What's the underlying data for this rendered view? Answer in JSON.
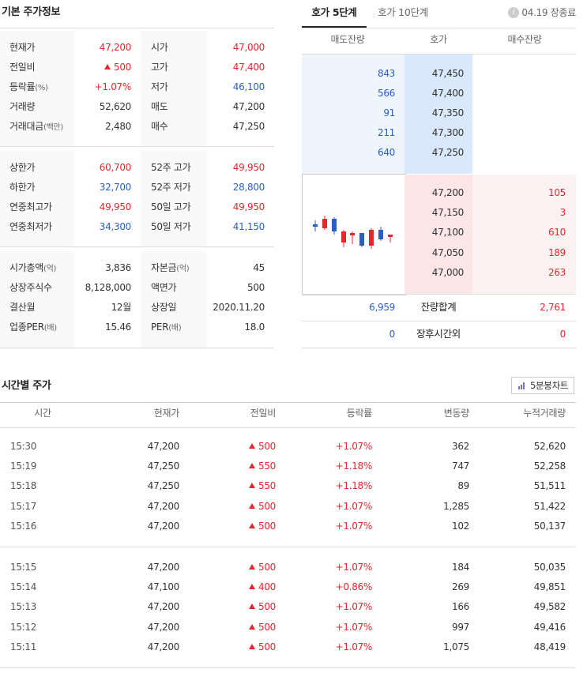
{
  "basic": {
    "title": "기본 주가정보",
    "groups": [
      [
        {
          "label": "현재가",
          "value": "47,200",
          "value_color": "#e8262d",
          "label2": "시가",
          "value2": "47,000",
          "value2_color": "#e8262d"
        },
        {
          "label": "전일비",
          "value": "500",
          "value_color": "#e8262d",
          "arrow": "up",
          "label2": "고가",
          "value2": "47,400",
          "value2_color": "#e8262d"
        },
        {
          "label": "등락률",
          "unit": "(%)",
          "value": "+1.07%",
          "value_color": "#e8262d",
          "label2": "저가",
          "value2": "46,100",
          "value2_color": "#2a5fc4"
        },
        {
          "label": "거래량",
          "value": "52,620",
          "label2": "매도",
          "value2": "47,200"
        },
        {
          "label": "거래대금",
          "unit": "(백만)",
          "value": "2,480",
          "label2": "매수",
          "value2": "47,250"
        }
      ],
      [
        {
          "label": "상한가",
          "value": "60,700",
          "value_color": "#e8262d",
          "label2": "52주 고가",
          "value2": "49,950",
          "value2_color": "#e8262d"
        },
        {
          "label": "하한가",
          "value": "32,700",
          "value_color": "#2a5fc4",
          "label2": "52주 저가",
          "value2": "28,800",
          "value2_color": "#2a5fc4"
        },
        {
          "label": "연중최고가",
          "value": "49,950",
          "value_color": "#e8262d",
          "label2": "50일 고가",
          "value2": "49,950",
          "value2_color": "#e8262d"
        },
        {
          "label": "연중최저가",
          "value": "34,300",
          "value_color": "#2a5fc4",
          "label2": "50일 저가",
          "value2": "41,150",
          "value2_color": "#2a5fc4"
        }
      ],
      [
        {
          "label": "시가총액",
          "unit": "(억)",
          "value": "3,836",
          "label2": "자본금",
          "unit2": "(억)",
          "value2": "45"
        },
        {
          "label": "상장주식수",
          "value": "8,128,000",
          "label2": "액면가",
          "value2": "500"
        },
        {
          "label": "결산월",
          "value": "12월",
          "label2": "상장일",
          "value2": "2020.11.20"
        },
        {
          "label": "업종PER",
          "unit": "(배)",
          "value": "15.46",
          "label2": "PER",
          "unit2": "(배)",
          "value2": "18.0"
        }
      ]
    ]
  },
  "orderbook": {
    "tabs": [
      "호가 5단계",
      "호가 10단계"
    ],
    "info_icon": "i",
    "status": "04.19 장종료",
    "headers": [
      "매도잔량",
      "호가",
      "매수잔량"
    ],
    "sell": [
      [
        "843",
        "47,450"
      ],
      [
        "566",
        "47,400"
      ],
      [
        "91",
        "47,350"
      ],
      [
        "211",
        "47,300"
      ],
      [
        "640",
        "47,250"
      ]
    ],
    "buy": [
      [
        "47,200",
        "105"
      ],
      [
        "47,150",
        "3"
      ],
      [
        "47,100",
        "610"
      ],
      [
        "47,050",
        "189"
      ],
      [
        "47,000",
        "263"
      ]
    ],
    "totals": [
      [
        "6,959",
        "잔량합계",
        "2,761"
      ],
      [
        "0",
        "장후시간외",
        "0"
      ]
    ]
  },
  "hourly": {
    "title": "시간별 주가",
    "button": "5분봉차트",
    "headers": [
      "시간",
      "현재가",
      "전일비",
      "등락률",
      "변동량",
      "누적거래량"
    ],
    "groups": [
      [
        [
          "15:30",
          "47,200",
          "500",
          "+1.07%",
          "362",
          "52,620"
        ],
        [
          "15:19",
          "47,250",
          "550",
          "+1.18%",
          "747",
          "52,258"
        ],
        [
          "15:18",
          "47,250",
          "550",
          "+1.18%",
          "89",
          "51,511"
        ],
        [
          "15:17",
          "47,200",
          "500",
          "+1.07%",
          "1,285",
          "51,422"
        ],
        [
          "15:16",
          "47,200",
          "500",
          "+1.07%",
          "102",
          "50,137"
        ]
      ],
      [
        [
          "15:15",
          "47,200",
          "500",
          "+1.07%",
          "184",
          "50,035"
        ],
        [
          "15:14",
          "47,100",
          "400",
          "+0.86%",
          "269",
          "49,851"
        ],
        [
          "15:13",
          "47,200",
          "500",
          "+1.07%",
          "166",
          "49,582"
        ],
        [
          "15:12",
          "47,200",
          "500",
          "+1.07%",
          "997",
          "49,416"
        ],
        [
          "15:11",
          "47,200",
          "500",
          "+1.07%",
          "1,075",
          "48,419"
        ]
      ]
    ]
  }
}
